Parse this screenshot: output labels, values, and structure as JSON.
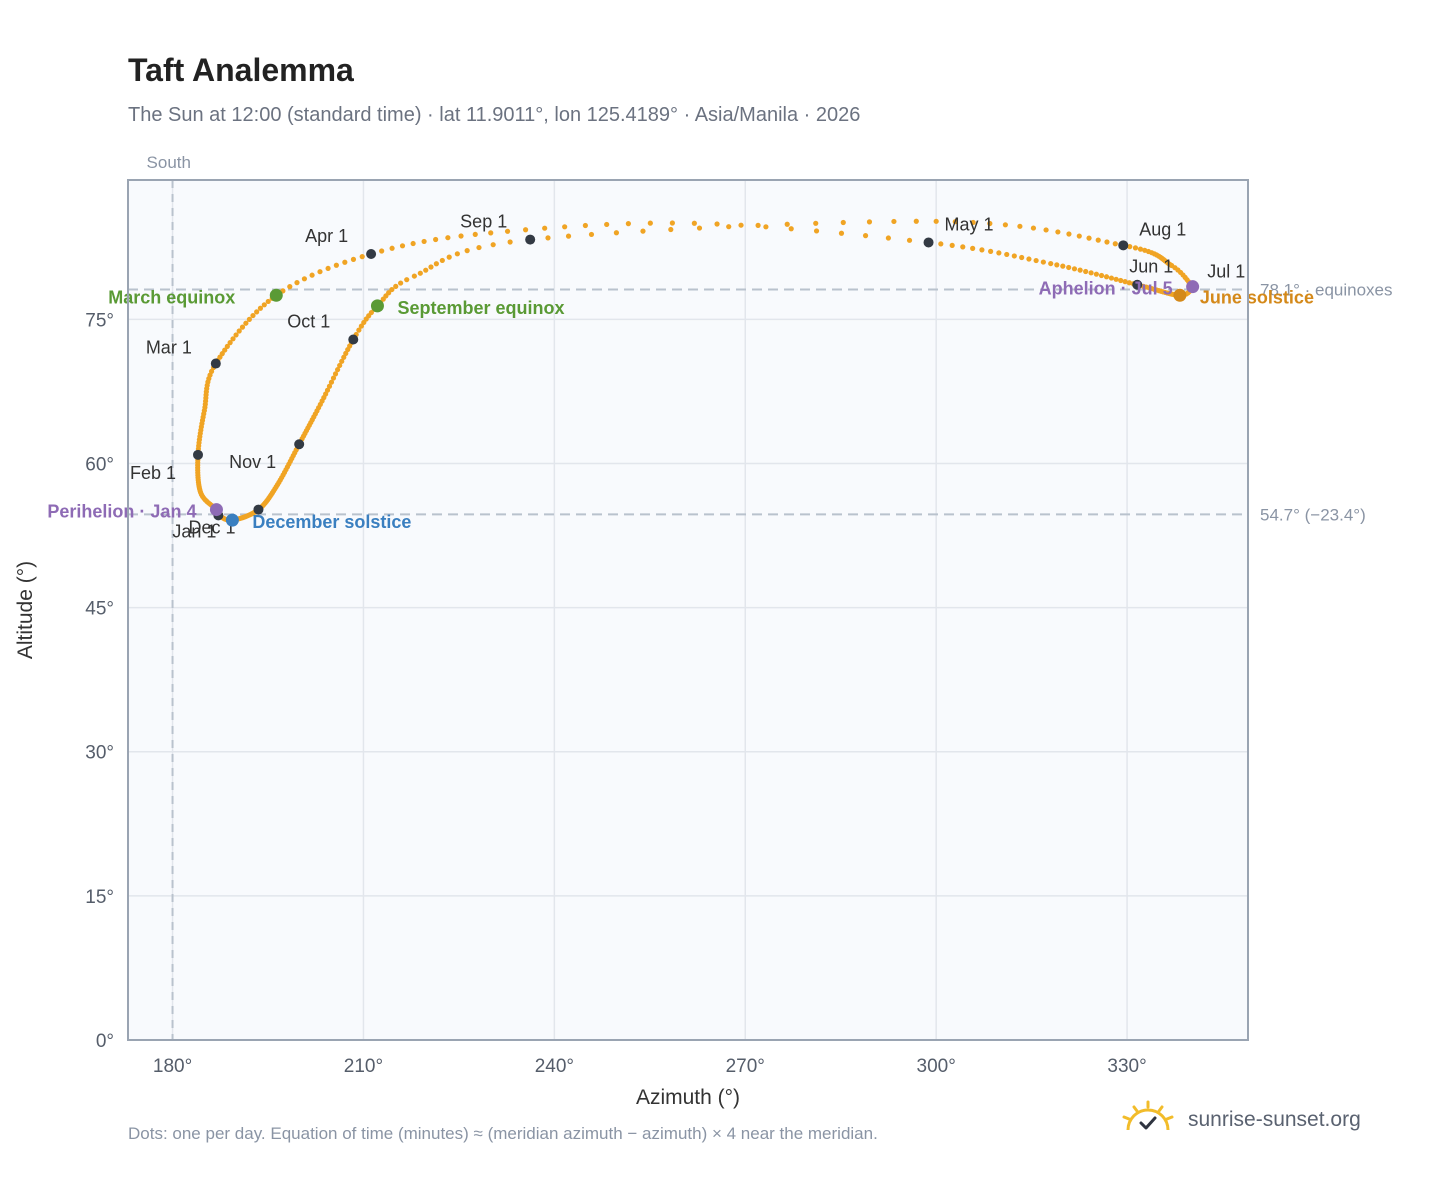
{
  "title": "Taft Analemma",
  "subtitle": "The Sun at 12:00 (standard time) · lat 11.9011°, lon 125.4189° · Asia/Manila · 2026",
  "footnote": "Dots: one per day. Equation of time (minutes) ≈ (meridian azimuth − azimuth) × 4 near the meridian.",
  "brand": {
    "text": "sunrise-sunset.org",
    "icon": "sun-logo-icon"
  },
  "colors": {
    "path": "#f0a424",
    "month_marker": "#333a44",
    "equinox": "#5a9a35",
    "december_solstice": "#3a7fc0",
    "june_solstice": "#d4891a",
    "apsis": "#8e6bb5",
    "grid": "#e2e6ec",
    "plot_bg": "#f8fafd",
    "frame": "#9aa4b2",
    "ref_line": "#b9c2cd"
  },
  "chart_data": {
    "type": "scatter",
    "xlabel": "Azimuth (°)",
    "ylabel": "Altitude (°)",
    "xlim": [
      173,
      349
    ],
    "ylim": [
      0,
      89.5
    ],
    "xticks": [
      180,
      210,
      240,
      270,
      300,
      330
    ],
    "xtick_labels": [
      "180°",
      "210°",
      "240°",
      "270°",
      "300°",
      "330°"
    ],
    "yticks": [
      0,
      15,
      30,
      45,
      60,
      75
    ],
    "ytick_labels": [
      "0°",
      "15°",
      "30°",
      "45°",
      "60°",
      "75°"
    ],
    "grid": true,
    "meridian": {
      "azimuth": 180,
      "label": "South"
    },
    "reference_lines": [
      {
        "altitude": 78.1,
        "label": "78.1° · equinoxes"
      },
      {
        "altitude": 54.7,
        "label": "54.7° (−23.4°)"
      }
    ],
    "month_markers": [
      {
        "label": "Jan 1",
        "az": 187.2,
        "alt": 54.6
      },
      {
        "label": "Feb 1",
        "az": 184.0,
        "alt": 60.9
      },
      {
        "label": "Mar 1",
        "az": 186.8,
        "alt": 70.4
      },
      {
        "label": "Apr 1",
        "az": 211.2,
        "alt": 81.8
      },
      {
        "label": "May 1",
        "az": 298.8,
        "alt": 83.0
      },
      {
        "label": "Jun 1",
        "az": 331.6,
        "alt": 78.6
      },
      {
        "label": "Jul 1",
        "az": 340.4,
        "alt": 78.4
      },
      {
        "label": "Aug 1",
        "az": 329.4,
        "alt": 82.7
      },
      {
        "label": "Sep 1",
        "az": 236.2,
        "alt": 83.3
      },
      {
        "label": "Oct 1",
        "az": 208.4,
        "alt": 72.9
      },
      {
        "label": "Nov 1",
        "az": 199.9,
        "alt": 62.0
      },
      {
        "label": "Dec 1",
        "az": 193.5,
        "alt": 55.2
      }
    ],
    "events": [
      {
        "label": "March equinox",
        "az": 196.3,
        "alt": 77.5,
        "kind": "equinox"
      },
      {
        "label": "September equinox",
        "az": 212.2,
        "alt": 76.4,
        "kind": "equinox"
      },
      {
        "label": "December solstice",
        "az": 189.4,
        "alt": 54.1,
        "kind": "december_solstice"
      },
      {
        "label": "June solstice",
        "az": 338.3,
        "alt": 77.5,
        "kind": "june_solstice"
      },
      {
        "label": "Perihelion · Jan 4",
        "az": 186.9,
        "alt": 55.2,
        "kind": "apsis"
      },
      {
        "label": "Aphelion · Jul 5",
        "az": 340.3,
        "alt": 78.4,
        "kind": "apsis"
      }
    ],
    "path_anchors": [
      {
        "doy": 1,
        "az": 187.2,
        "alt": 54.6
      },
      {
        "doy": 4,
        "az": 186.9,
        "alt": 55.2
      },
      {
        "doy": 16,
        "az": 184.4,
        "alt": 57.0
      },
      {
        "doy": 32,
        "az": 184.0,
        "alt": 60.9
      },
      {
        "doy": 46,
        "az": 185.0,
        "alt": 65.5
      },
      {
        "doy": 60,
        "az": 186.8,
        "alt": 70.4
      },
      {
        "doy": 79,
        "az": 196.3,
        "alt": 77.5
      },
      {
        "doy": 91,
        "az": 211.2,
        "alt": 81.8
      },
      {
        "doy": 101,
        "az": 230.0,
        "alt": 84.0
      },
      {
        "doy": 111,
        "az": 262.0,
        "alt": 85.0
      },
      {
        "doy": 121,
        "az": 298.8,
        "alt": 83.0
      },
      {
        "doy": 135,
        "az": 318.0,
        "alt": 80.8
      },
      {
        "doy": 152,
        "az": 331.6,
        "alt": 78.6
      },
      {
        "doy": 172,
        "az": 338.3,
        "alt": 77.5
      },
      {
        "doy": 182,
        "az": 340.4,
        "alt": 78.4
      },
      {
        "doy": 186,
        "az": 340.3,
        "alt": 78.4
      },
      {
        "doy": 196,
        "az": 337.0,
        "alt": 80.6
      },
      {
        "doy": 213,
        "az": 329.4,
        "alt": 82.7
      },
      {
        "doy": 228,
        "az": 300.0,
        "alt": 85.2
      },
      {
        "doy": 244,
        "az": 236.2,
        "alt": 83.3
      },
      {
        "doy": 256,
        "az": 218.0,
        "alt": 79.5
      },
      {
        "doy": 265,
        "az": 212.2,
        "alt": 76.4
      },
      {
        "doy": 274,
        "az": 208.4,
        "alt": 72.9
      },
      {
        "doy": 290,
        "az": 203.5,
        "alt": 66.5
      },
      {
        "doy": 305,
        "az": 199.9,
        "alt": 62.0
      },
      {
        "doy": 320,
        "az": 196.5,
        "alt": 57.8
      },
      {
        "doy": 335,
        "az": 193.5,
        "alt": 55.2
      },
      {
        "doy": 355,
        "az": 189.4,
        "alt": 54.1
      },
      {
        "doy": 366,
        "az": 187.2,
        "alt": 54.6
      }
    ]
  }
}
